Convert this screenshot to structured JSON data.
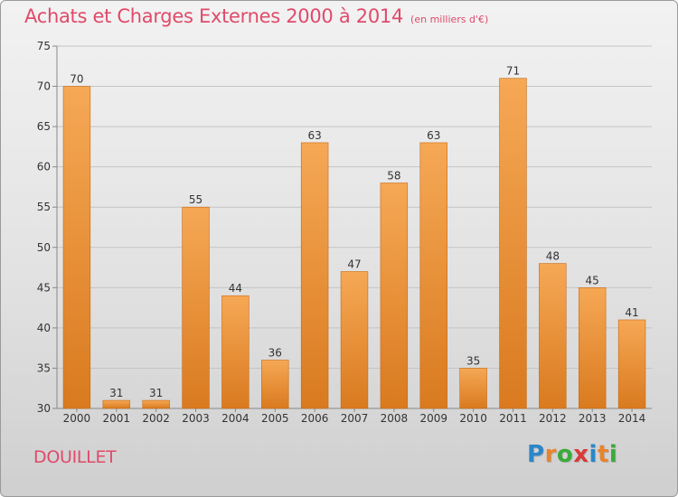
{
  "chart_data": {
    "type": "bar",
    "title": "Achats et Charges Externes 2000 à 2014",
    "subtitle": "(en milliers d'€)",
    "categories": [
      "2000",
      "2001",
      "2002",
      "2003",
      "2004",
      "2005",
      "2006",
      "2007",
      "2008",
      "2009",
      "2010",
      "2011",
      "2012",
      "2013",
      "2014"
    ],
    "values": [
      70,
      31,
      31,
      55,
      44,
      36,
      63,
      47,
      58,
      63,
      35,
      71,
      48,
      45,
      41
    ],
    "ylim": [
      30,
      75
    ],
    "yticks": [
      30,
      35,
      40,
      45,
      50,
      55,
      60,
      65,
      70,
      75
    ],
    "grid": true,
    "colors": {
      "bar_top": "#f6a855",
      "bar_bottom": "#d97a1f",
      "axis_text": "#333333"
    }
  },
  "commune": "DOUILLET",
  "logo": {
    "letters": [
      "P",
      "r",
      "o",
      "x",
      "i",
      "t",
      "i"
    ],
    "colors": [
      "#2c86c8",
      "#e8842c",
      "#3aaa3a",
      "#d83a3a",
      "#2c86c8",
      "#e8842c",
      "#3aaa3a"
    ]
  }
}
